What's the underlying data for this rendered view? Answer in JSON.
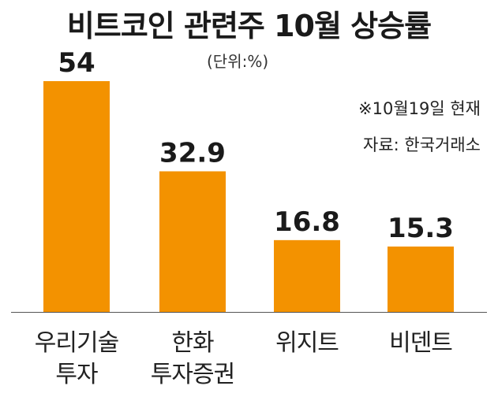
{
  "chart_data": {
    "type": "bar",
    "title": "비트코인 관련주 10월 상승률",
    "unit": "(단위:%)",
    "notes": [
      "※10월19일 현재",
      "자료: 한국거래소"
    ],
    "categories": [
      [
        "우리기술",
        "투자"
      ],
      [
        "한화",
        "투자증권"
      ],
      [
        "위지트"
      ],
      [
        "비덴트"
      ]
    ],
    "values": [
      54,
      32.9,
      16.8,
      15.3
    ],
    "value_labels": [
      "54",
      "32.9",
      "16.8",
      "15.3"
    ],
    "bar_color": "#F39200",
    "ylim": [
      0,
      54
    ],
    "grid": false,
    "legend": "none"
  }
}
